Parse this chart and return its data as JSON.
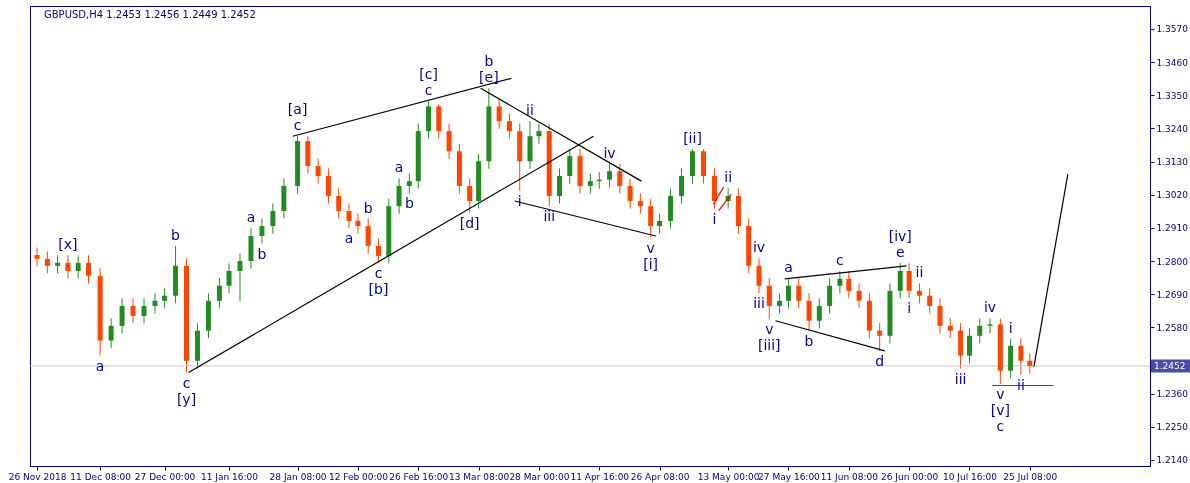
{
  "chart_data": {
    "type": "candlestick",
    "title": "GBPUSD,H4  1.2453 1.2456 1.2449 1.2452",
    "x": [
      "2018-11-26T00:00",
      "2018-11-28T12:00",
      "2018-12-01T00:00",
      "2018-12-03T12:00",
      "2018-12-06T00:00",
      "2018-12-08T12:00",
      "2018-12-11T08:00",
      "2018-12-14T00:00",
      "2018-12-16T16:00",
      "2018-12-19T08:00",
      "2018-12-22T00:00",
      "2018-12-24T16:00",
      "2018-12-27T00:00",
      "2018-12-29T16:00",
      "2019-01-01T08:00",
      "2019-01-04T00:00",
      "2019-01-06T16:00",
      "2019-01-09T08:00",
      "2019-01-11T16:00",
      "2019-01-14T08:00",
      "2019-01-17T00:00",
      "2019-01-19T16:00",
      "2019-01-22T08:00",
      "2019-01-25T00:00",
      "2019-01-28T08:00",
      "2019-01-30T20:00",
      "2019-02-02T08:00",
      "2019-02-04T20:00",
      "2019-02-07T08:00",
      "2019-02-09T20:00",
      "2019-02-12T00:00",
      "2019-02-14T12:00",
      "2019-02-17T00:00",
      "2019-02-19T12:00",
      "2019-02-22T00:00",
      "2019-02-24T12:00",
      "2019-02-26T16:00",
      "2019-03-01T04:00",
      "2019-03-03T16:00",
      "2019-03-06T04:00",
      "2019-03-08T16:00",
      "2019-03-11T04:00",
      "2019-03-13T08:00",
      "2019-03-15T20:00",
      "2019-03-18T08:00",
      "2019-03-20T20:00",
      "2019-03-23T08:00",
      "2019-03-25T20:00",
      "2019-03-28T00:00",
      "2019-03-30T12:00",
      "2019-04-02T00:00",
      "2019-04-04T12:00",
      "2019-04-07T00:00",
      "2019-04-09T12:00",
      "2019-04-11T16:00",
      "2019-04-14T04:00",
      "2019-04-16T16:00",
      "2019-04-19T04:00",
      "2019-04-21T16:00",
      "2019-04-24T04:00",
      "2019-04-26T08:00",
      "2019-04-29T00:00",
      "2019-05-01T16:00",
      "2019-05-04T08:00",
      "2019-05-07T00:00",
      "2019-05-09T16:00",
      "2019-05-13T00:00",
      "2019-05-15T12:00",
      "2019-05-18T00:00",
      "2019-05-20T12:00",
      "2019-05-23T00:00",
      "2019-05-25T12:00",
      "2019-05-27T16:00",
      "2019-05-30T04:00",
      "2019-06-01T16:00",
      "2019-06-04T04:00",
      "2019-06-06T16:00",
      "2019-06-09T04:00",
      "2019-06-11T08:00",
      "2019-06-13T20:00",
      "2019-06-16T08:00",
      "2019-06-18T20:00",
      "2019-06-21T08:00",
      "2019-06-23T20:00",
      "2019-06-26T00:00",
      "2019-06-28T12:00",
      "2019-07-01T00:00",
      "2019-07-03T12:00",
      "2019-07-06T00:00",
      "2019-07-08T12:00",
      "2019-07-10T16:00",
      "2019-07-13T04:00",
      "2019-07-15T16:00",
      "2019-07-18T04:00",
      "2019-07-20T16:00",
      "2019-07-23T04:00",
      "2019-07-25T08:00"
    ],
    "ohlc": [
      [
        1.282,
        1.2845,
        1.2782,
        1.2807
      ],
      [
        1.2807,
        1.2832,
        1.2759,
        1.2784
      ],
      [
        1.2784,
        1.2819,
        1.2759,
        1.2794
      ],
      [
        1.2794,
        1.2819,
        1.2742,
        1.2767
      ],
      [
        1.2767,
        1.2819,
        1.2742,
        1.2794
      ],
      [
        1.2794,
        1.2819,
        1.2726,
        1.2751
      ],
      [
        1.2751,
        1.2776,
        1.2486,
        1.2536
      ],
      [
        1.2536,
        1.261,
        1.2511,
        1.2585
      ],
      [
        1.2585,
        1.2676,
        1.256,
        1.2651
      ],
      [
        1.2651,
        1.2676,
        1.2593,
        1.2618
      ],
      [
        1.2618,
        1.2676,
        1.2593,
        1.2651
      ],
      [
        1.2651,
        1.2693,
        1.2626,
        1.2668
      ],
      [
        1.2668,
        1.271,
        1.2643,
        1.2685
      ],
      [
        1.2685,
        1.285,
        1.266,
        1.2784
      ],
      [
        1.2784,
        1.2809,
        1.243,
        1.2469
      ],
      [
        1.2469,
        1.2594,
        1.2444,
        1.2569
      ],
      [
        1.2569,
        1.2693,
        1.2544,
        1.2668
      ],
      [
        1.2668,
        1.2743,
        1.2643,
        1.2718
      ],
      [
        1.2718,
        1.2792,
        1.2693,
        1.2767
      ],
      [
        1.2767,
        1.2825,
        1.2668,
        1.28
      ],
      [
        1.28,
        1.2908,
        1.2775,
        1.2883
      ],
      [
        1.2883,
        1.2941,
        1.2858,
        1.2916
      ],
      [
        1.2916,
        1.2991,
        1.2891,
        1.2966
      ],
      [
        1.2966,
        1.3074,
        1.2941,
        1.3049
      ],
      [
        1.3049,
        1.3214,
        1.3024,
        1.3198
      ],
      [
        1.3198,
        1.3214,
        1.309,
        1.3115
      ],
      [
        1.3115,
        1.314,
        1.3057,
        1.3082
      ],
      [
        1.3082,
        1.3107,
        1.2991,
        1.3016
      ],
      [
        1.3016,
        1.3041,
        1.2941,
        1.2966
      ],
      [
        1.2966,
        1.2991,
        1.2908,
        1.2933
      ],
      [
        1.2933,
        1.2958,
        1.2891,
        1.2916
      ],
      [
        1.2916,
        1.2941,
        1.2825,
        1.285
      ],
      [
        1.285,
        1.2875,
        1.2794,
        1.2817
      ],
      [
        1.2817,
        1.3007,
        1.2792,
        1.2982
      ],
      [
        1.2982,
        1.3074,
        1.2957,
        1.3049
      ],
      [
        1.3049,
        1.309,
        1.3024,
        1.3065
      ],
      [
        1.3065,
        1.3256,
        1.304,
        1.3231
      ],
      [
        1.3231,
        1.333,
        1.3206,
        1.3313
      ],
      [
        1.3313,
        1.332,
        1.3206,
        1.3231
      ],
      [
        1.3231,
        1.3256,
        1.3139,
        1.3164
      ],
      [
        1.3164,
        1.3189,
        1.3024,
        1.3049
      ],
      [
        1.3049,
        1.3074,
        1.2959,
        1.2999
      ],
      [
        1.2999,
        1.3156,
        1.2974,
        1.3131
      ],
      [
        1.3131,
        1.3373,
        1.3106,
        1.3313
      ],
      [
        1.3313,
        1.3338,
        1.3239,
        1.3264
      ],
      [
        1.3264,
        1.3289,
        1.3206,
        1.3231
      ],
      [
        1.3231,
        1.3256,
        1.3032,
        1.3131
      ],
      [
        1.3131,
        1.3264,
        1.3106,
        1.3214
      ],
      [
        1.3214,
        1.3256,
        1.3189,
        1.3231
      ],
      [
        1.3231,
        1.3256,
        1.2982,
        1.3016
      ],
      [
        1.3016,
        1.3107,
        1.2991,
        1.3082
      ],
      [
        1.3082,
        1.3173,
        1.3057,
        1.3148
      ],
      [
        1.3148,
        1.3173,
        1.3024,
        1.3049
      ],
      [
        1.3049,
        1.309,
        1.3024,
        1.3065
      ],
      [
        1.3065,
        1.3095,
        1.304,
        1.307
      ],
      [
        1.307,
        1.3123,
        1.3045,
        1.3098
      ],
      [
        1.3098,
        1.3123,
        1.3024,
        1.3049
      ],
      [
        1.3049,
        1.3074,
        1.2974,
        1.2999
      ],
      [
        1.2999,
        1.3024,
        1.2957,
        1.2982
      ],
      [
        1.2982,
        1.3007,
        1.2877,
        1.2916
      ],
      [
        1.2916,
        1.2958,
        1.2891,
        1.2933
      ],
      [
        1.2933,
        1.3041,
        1.2908,
        1.3016
      ],
      [
        1.3016,
        1.3107,
        1.2991,
        1.3082
      ],
      [
        1.3082,
        1.3171,
        1.3057,
        1.3164
      ],
      [
        1.3164,
        1.3171,
        1.3057,
        1.3082
      ],
      [
        1.3082,
        1.3107,
        1.2974,
        1.2999
      ],
      [
        1.2999,
        1.3041,
        1.2974,
        1.3016
      ],
      [
        1.3016,
        1.3041,
        1.2891,
        1.2916
      ],
      [
        1.2916,
        1.2941,
        1.2759,
        1.2784
      ],
      [
        1.2784,
        1.2809,
        1.2693,
        1.2718
      ],
      [
        1.2718,
        1.2743,
        1.2608,
        1.2651
      ],
      [
        1.2651,
        1.2693,
        1.2626,
        1.2668
      ],
      [
        1.2668,
        1.2743,
        1.2643,
        1.2718
      ],
      [
        1.2718,
        1.2743,
        1.2643,
        1.2668
      ],
      [
        1.2668,
        1.2693,
        1.2569,
        1.2602
      ],
      [
        1.2602,
        1.2676,
        1.2577,
        1.2651
      ],
      [
        1.2651,
        1.2743,
        1.2626,
        1.2718
      ],
      [
        1.2718,
        1.2766,
        1.2693,
        1.2741
      ],
      [
        1.2741,
        1.2766,
        1.2676,
        1.2701
      ],
      [
        1.2701,
        1.2726,
        1.2643,
        1.2668
      ],
      [
        1.2668,
        1.2693,
        1.2544,
        1.2569
      ],
      [
        1.2569,
        1.2594,
        1.2502,
        1.2552
      ],
      [
        1.2552,
        1.2726,
        1.2527,
        1.2701
      ],
      [
        1.2701,
        1.2794,
        1.2676,
        1.2767
      ],
      [
        1.2767,
        1.2792,
        1.2676,
        1.2701
      ],
      [
        1.2701,
        1.2726,
        1.266,
        1.2685
      ],
      [
        1.2685,
        1.271,
        1.2626,
        1.2651
      ],
      [
        1.2651,
        1.2676,
        1.256,
        1.2585
      ],
      [
        1.2585,
        1.261,
        1.2544,
        1.2569
      ],
      [
        1.2569,
        1.2594,
        1.2443,
        1.2486
      ],
      [
        1.2486,
        1.2577,
        1.2461,
        1.2552
      ],
      [
        1.2552,
        1.261,
        1.2527,
        1.2585
      ],
      [
        1.2585,
        1.261,
        1.256,
        1.259
      ],
      [
        1.259,
        1.261,
        1.2393,
        1.2436
      ],
      [
        1.2436,
        1.2542,
        1.2411,
        1.2519
      ],
      [
        1.2519,
        1.2544,
        1.2423,
        1.2469
      ],
      [
        1.2469,
        1.2494,
        1.2427,
        1.2452
      ]
    ],
    "colors": [
      "#ff4500",
      "#ff4500",
      "#228b22",
      "#ff4500",
      "#228b22",
      "#ff4500",
      "#ff4500",
      "#228b22",
      "#228b22",
      "#ff4500",
      "#228b22",
      "#228b22",
      "#228b22",
      "#228b22",
      "#ff4500",
      "#228b22",
      "#228b22",
      "#228b22",
      "#228b22",
      "#228b22",
      "#228b22",
      "#228b22",
      "#228b22",
      "#228b22",
      "#228b22",
      "#ff4500",
      "#ff4500",
      "#ff4500",
      "#ff4500",
      "#ff4500",
      "#ff4500",
      "#ff4500",
      "#ff4500",
      "#228b22",
      "#228b22",
      "#228b22",
      "#228b22",
      "#228b22",
      "#ff4500",
      "#ff4500",
      "#ff4500",
      "#ff4500",
      "#228b22",
      "#228b22",
      "#ff4500",
      "#ff4500",
      "#ff4500",
      "#228b22",
      "#228b22",
      "#ff4500",
      "#228b22",
      "#228b22",
      "#ff4500",
      "#228b22",
      "#228b22",
      "#228b22",
      "#ff4500",
      "#ff4500",
      "#ff4500",
      "#ff4500",
      "#228b22",
      "#228b22",
      "#228b22",
      "#228b22",
      "#ff4500",
      "#ff4500",
      "#228b22",
      "#ff4500",
      "#ff4500",
      "#ff4500",
      "#ff4500",
      "#228b22",
      "#228b22",
      "#ff4500",
      "#ff4500",
      "#228b22",
      "#228b22",
      "#228b22",
      "#ff4500",
      "#ff4500",
      "#ff4500",
      "#ff4500",
      "#228b22",
      "#228b22",
      "#ff4500",
      "#ff4500",
      "#ff4500",
      "#ff4500",
      "#ff4500",
      "#ff4500",
      "#228b22",
      "#228b22",
      "#228b22",
      "#ff4500",
      "#228b22",
      "#ff4500",
      "#ff4500"
    ],
    "series": [
      {
        "type": "line",
        "color": "#000000",
        "x": [
          "2019-01-27T04:00",
          "2019-03-21T08:00"
        ],
        "values": [
          1.3214,
          1.3406
        ]
      },
      {
        "type": "line",
        "color": "#000000",
        "x": [
          "2019-01-01T20:00",
          "2019-04-10T06:00"
        ],
        "values": [
          1.243,
          1.3214
        ]
      },
      {
        "type": "line",
        "color": "#000000",
        "x": [
          "2019-03-13T20:00",
          "2019-04-21T22:00"
        ],
        "values": [
          1.3373,
          1.3065
        ]
      },
      {
        "type": "line",
        "color": "#000000",
        "x": [
          "2019-03-22T02:00",
          "2019-04-25T10:00"
        ],
        "values": [
          1.2999,
          1.2883
        ]
      },
      {
        "type": "line",
        "color": "#000000",
        "x": [
          "2019-05-26T18:00",
          "2019-06-25T08:00"
        ],
        "values": [
          1.2741,
          1.2784
        ]
      },
      {
        "type": "line",
        "color": "#000000",
        "x": [
          "2019-05-24T12:00",
          "2019-06-20T02:00"
        ],
        "values": [
          1.2602,
          1.2502
        ]
      },
      {
        "type": "line",
        "color": "#000000",
        "x": [
          "2019-07-26T08:00",
          "2019-08-03T14:00"
        ],
        "values": [
          1.245,
          1.3088
        ]
      },
      {
        "type": "line",
        "color": "#ff0000",
        "x": [
          "2019-07-16T04:00",
          "2019-07-31T02:00"
        ],
        "values": [
          1.2387,
          1.2387
        ]
      },
      {
        "type": "line",
        "color": "#ff0000",
        "x": [
          "2019-05-09T10:00",
          "2019-05-11T22:00"
        ],
        "values": [
          1.2989,
          1.3045
        ]
      },
      {
        "type": "line",
        "color": "#ff0000",
        "x": [
          "2019-05-10T16:00",
          "2019-05-13T18:00"
        ],
        "values": [
          1.2966,
          1.3022
        ]
      }
    ],
    "annotations": [
      {
        "text": "a",
        "x": "2018-12-11T08:00",
        "y": 1.2486
      },
      {
        "text": "b",
        "x": "2018-12-29T16:00",
        "y": 1.285
      },
      {
        "text": "c",
        "x": "2019-01-01T08:00",
        "y": 1.243
      },
      {
        "text": "a",
        "x": "2019-01-17T00:00",
        "y": 1.2908
      },
      {
        "text": "b",
        "x": "2019-01-19T16:00",
        "y": 1.2858
      },
      {
        "text": "c",
        "x": "2019-01-28T08:00",
        "y": 1.3214
      },
      {
        "text": "a",
        "x": "2019-02-09T20:00",
        "y": 1.2908
      },
      {
        "text": "b",
        "x": "2019-02-14T12:00",
        "y": 1.2941
      },
      {
        "text": "c",
        "x": "2019-02-17T00:00",
        "y": 1.2794
      },
      {
        "text": "a",
        "x": "2019-02-22T00:00",
        "y": 1.3074
      },
      {
        "text": "b",
        "x": "2019-02-24T12:00",
        "y": 1.3024
      },
      {
        "text": "c",
        "x": "2019-03-01T04:00",
        "y": 1.333
      },
      {
        "text": "i",
        "x": "2019-03-23T08:00",
        "y": 1.3032
      },
      {
        "text": "ii",
        "x": "2019-03-25T20:00",
        "y": 1.3264
      },
      {
        "text": "iii",
        "x": "2019-03-30T12:00",
        "y": 1.2982
      },
      {
        "text": "iv",
        "x": "2019-04-14T04:00",
        "y": 1.3123
      },
      {
        "text": "v",
        "x": "2019-04-24T04:00",
        "y": 1.2877
      },
      {
        "text": "i",
        "x": "2019-05-09T16:00",
        "y": 1.2974
      },
      {
        "text": "ii",
        "x": "2019-05-13T00:00",
        "y": 1.3041
      },
      {
        "text": "iii",
        "x": "2019-05-20T12:00",
        "y": 1.2693
      },
      {
        "text": "iv",
        "x": "2019-05-20T12:00",
        "y": 1.2809
      },
      {
        "text": "v",
        "x": "2019-05-23T00:00",
        "y": 1.2608
      },
      {
        "text": "a",
        "x": "2019-05-27T16:00",
        "y": 1.2743
      },
      {
        "text": "b",
        "x": "2019-06-01T16:00",
        "y": 1.2569
      },
      {
        "text": "c",
        "x": "2019-06-09T04:00",
        "y": 1.2766
      },
      {
        "text": "d",
        "x": "2019-06-18T20:00",
        "y": 1.2502
      },
      {
        "text": "e",
        "x": "2019-06-23T20:00",
        "y": 1.2794
      },
      {
        "text": "i",
        "x": "2019-06-26T00:00",
        "y": 1.2676
      },
      {
        "text": "ii",
        "x": "2019-06-28T12:00",
        "y": 1.2726
      },
      {
        "text": "iii",
        "x": "2019-07-08T12:00",
        "y": 1.2443
      },
      {
        "text": "iv",
        "x": "2019-07-15T16:00",
        "y": 1.261
      },
      {
        "text": "v",
        "x": "2019-07-18T04:00",
        "y": 1.2393
      },
      {
        "text": "i",
        "x": "2019-07-20T16:00",
        "y": 1.2542
      },
      {
        "text": "ii",
        "x": "2019-07-23T04:00",
        "y": 1.2423
      },
      {
        "text": "[x]",
        "x": "2018-12-03T12:00",
        "y": 1.2819
      },
      {
        "text": "[y]",
        "x": "2019-01-01T08:00",
        "y": 1.243
      },
      {
        "text": "[a]",
        "x": "2019-01-28T08:00",
        "y": 1.3214
      },
      {
        "text": "[b]",
        "x": "2019-02-17T00:00",
        "y": 1.2794
      },
      {
        "text": "[c]",
        "x": "2019-03-01T04:00",
        "y": 1.333
      },
      {
        "text": "[d]",
        "x": "2019-03-11T04:00",
        "y": 1.2959
      },
      {
        "text": "[e]",
        "x": "2019-03-15T20:00",
        "y": 1.3373
      },
      {
        "text": "[i]",
        "x": "2019-04-24T04:00",
        "y": 1.2877
      },
      {
        "text": "[ii]",
        "x": "2019-05-04T08:00",
        "y": 1.3171
      },
      {
        "text": "[iii]",
        "x": "2019-05-23T00:00",
        "y": 1.2608
      },
      {
        "text": "[iv]",
        "x": "2019-06-23T20:00",
        "y": 1.2794
      },
      {
        "text": "[v]",
        "x": "2019-07-18T04:00",
        "y": 1.2393
      },
      {
        "text": "b",
        "x": "2019-03-15T20:00",
        "y": 1.3373
      },
      {
        "text": "c",
        "x": "2019-07-18T04:00",
        "y": 1.2393
      }
    ],
    "xlim": [
      "2018-11-25T12:00",
      "2019-08-22T08:00"
    ],
    "xticks": [
      {
        "value": "2018-11-26T00:00",
        "label": "26 Nov 2018"
      },
      {
        "value": "2018-12-11T08:00",
        "label": "11 Dec 08:00"
      },
      {
        "value": "2018-12-27T00:00",
        "label": "27 Dec 00:00"
      },
      {
        "value": "2019-01-11T16:00",
        "label": "11 Jan 16:00"
      },
      {
        "value": "2019-01-28T08:00",
        "label": "28 Jan 08:00"
      },
      {
        "value": "2019-02-12T00:00",
        "label": "12 Feb 00:00"
      },
      {
        "value": "2019-02-26T16:00",
        "label": "26 Feb 16:00"
      },
      {
        "value": "2019-03-13T08:00",
        "label": "13 Mar 08:00"
      },
      {
        "value": "2019-03-28T00:00",
        "label": "28 Mar 00:00"
      },
      {
        "value": "2019-04-11T16:00",
        "label": "11 Apr 16:00"
      },
      {
        "value": "2019-04-26T08:00",
        "label": "26 Apr 08:00"
      },
      {
        "value": "2019-05-13T00:00",
        "label": "13 May 00:00"
      },
      {
        "value": "2019-05-27T16:00",
        "label": "27 May 16:00"
      },
      {
        "value": "2019-06-11T08:00",
        "label": "11 Jun 08:00"
      },
      {
        "value": "2019-06-26T00:00",
        "label": "26 Jun 00:00"
      },
      {
        "value": "2019-07-10T16:00",
        "label": "10 Jul 16:00"
      },
      {
        "value": "2019-07-25T08:00",
        "label": "25 Jul 08:00"
      }
    ],
    "ylim": [
      1.212,
      1.3646
    ],
    "yticks": [
      {
        "value": 1.214,
        "label": "1.2140"
      },
      {
        "value": 1.225,
        "label": "1.2250"
      },
      {
        "value": 1.236,
        "label": "1.2360"
      },
      {
        "value": 1.258,
        "label": "1.2580"
      },
      {
        "value": 1.269,
        "label": "1.2690"
      },
      {
        "value": 1.28,
        "label": "1.2800"
      },
      {
        "value": 1.291,
        "label": "1.2910"
      },
      {
        "value": 1.302,
        "label": "1.3020"
      },
      {
        "value": 1.313,
        "label": "1.3130"
      },
      {
        "value": 1.324,
        "label": "1.3240"
      },
      {
        "value": 1.335,
        "label": "1.3350"
      },
      {
        "value": 1.346,
        "label": "1.3460"
      },
      {
        "value": 1.357,
        "label": "1.3570"
      }
    ],
    "ref_lines": [
      {
        "axis": "y",
        "value": 1.2452,
        "label": "1.2452",
        "color": "#c8c8c8"
      }
    ],
    "grid": false
  }
}
